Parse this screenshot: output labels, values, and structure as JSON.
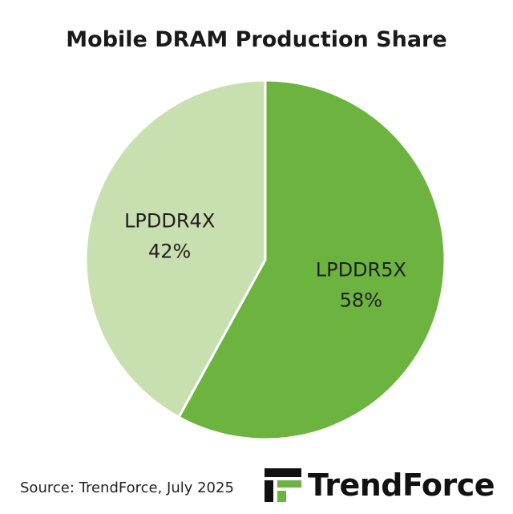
{
  "chart_data": {
    "type": "pie",
    "title": "Mobile DRAM Production Share",
    "slices": [
      {
        "label": "LPDDR5X",
        "value": 58,
        "display": "58%",
        "color": "#6cb33f"
      },
      {
        "label": "LPDDR4X",
        "value": 42,
        "display": "42%",
        "color": "#c8e0b0"
      }
    ],
    "start_angle_deg": 0,
    "direction": "clockwise"
  },
  "source": "Source: TrendForce, July 2025",
  "brand": {
    "name": "TrendForce",
    "colors": {
      "dark": "#111111",
      "green": "#6cb33f"
    }
  },
  "watermark": {
    "text": "TrendForce"
  }
}
